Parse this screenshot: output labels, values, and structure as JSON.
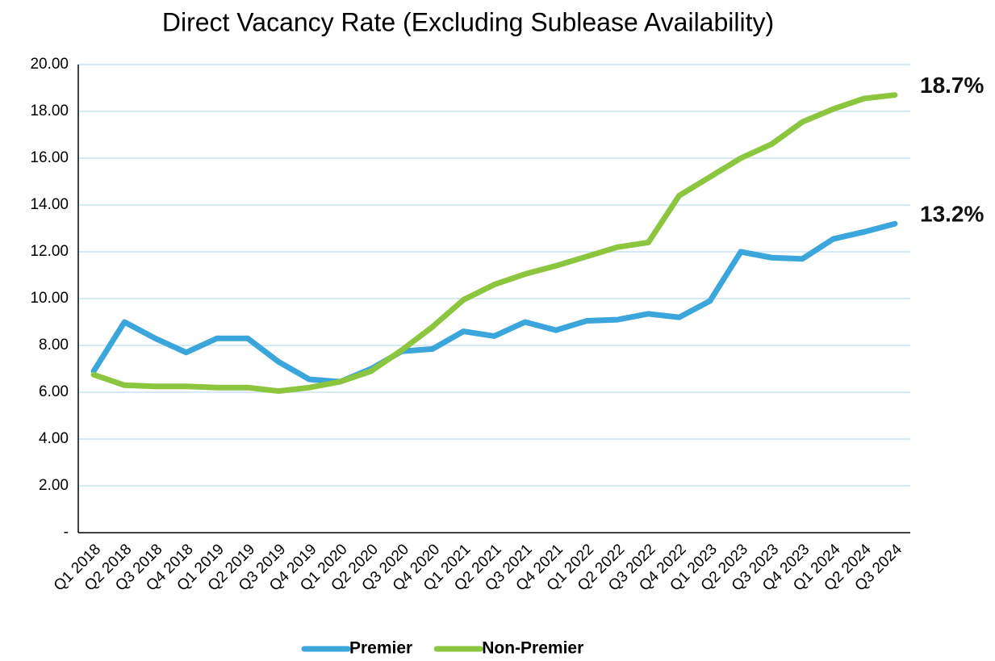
{
  "chart_data": {
    "type": "line",
    "title": "Direct Vacancy Rate (Excluding Sublease Availability)",
    "categories": [
      "Q1 2018",
      "Q2 2018",
      "Q3 2018",
      "Q4 2018",
      "Q1 2019",
      "Q2 2019",
      "Q3 2019",
      "Q4 2019",
      "Q1 2020",
      "Q2 2020",
      "Q3 2020",
      "Q4 2020",
      "Q1 2021",
      "Q2 2021",
      "Q3 2021",
      "Q4 2021",
      "Q1 2022",
      "Q2 2022",
      "Q3 2022",
      "Q4 2022",
      "Q1 2023",
      "Q2 2023",
      "Q3 2023",
      "Q4 2023",
      "Q1 2024",
      "Q2 2024",
      "Q3 2024"
    ],
    "series": [
      {
        "name": "Premier",
        "color": "#3ba6dc",
        "values": [
          6.9,
          9.0,
          8.3,
          7.7,
          8.3,
          8.3,
          7.3,
          6.55,
          6.45,
          7.0,
          7.75,
          7.85,
          8.6,
          8.4,
          9.0,
          8.65,
          9.05,
          9.1,
          9.35,
          9.2,
          9.9,
          12.0,
          11.75,
          11.7,
          12.55,
          12.85,
          13.2
        ]
      },
      {
        "name": "Non-Premier",
        "color": "#8cc63f",
        "values": [
          6.75,
          6.3,
          6.25,
          6.25,
          6.2,
          6.2,
          6.05,
          6.2,
          6.45,
          6.9,
          7.8,
          8.8,
          9.95,
          10.6,
          11.05,
          11.4,
          11.8,
          12.2,
          12.4,
          14.4,
          15.2,
          16.0,
          16.6,
          17.55,
          18.1,
          18.55,
          18.7
        ]
      }
    ],
    "annotations": [
      "13.2%",
      "18.7%"
    ],
    "ylim": [
      0,
      20
    ],
    "yticks": [
      {
        "value": 0,
        "label": "-"
      },
      {
        "value": 2,
        "label": "2.00"
      },
      {
        "value": 4,
        "label": "4.00"
      },
      {
        "value": 6,
        "label": "6.00"
      },
      {
        "value": 8,
        "label": "8.00"
      },
      {
        "value": 10,
        "label": "10.00"
      },
      {
        "value": 12,
        "label": "12.00"
      },
      {
        "value": 14,
        "label": "14.00"
      },
      {
        "value": 16,
        "label": "16.00"
      },
      {
        "value": 18,
        "label": "18.00"
      },
      {
        "value": 20,
        "label": "20.00"
      }
    ],
    "grid": true,
    "legend": "bottom"
  }
}
